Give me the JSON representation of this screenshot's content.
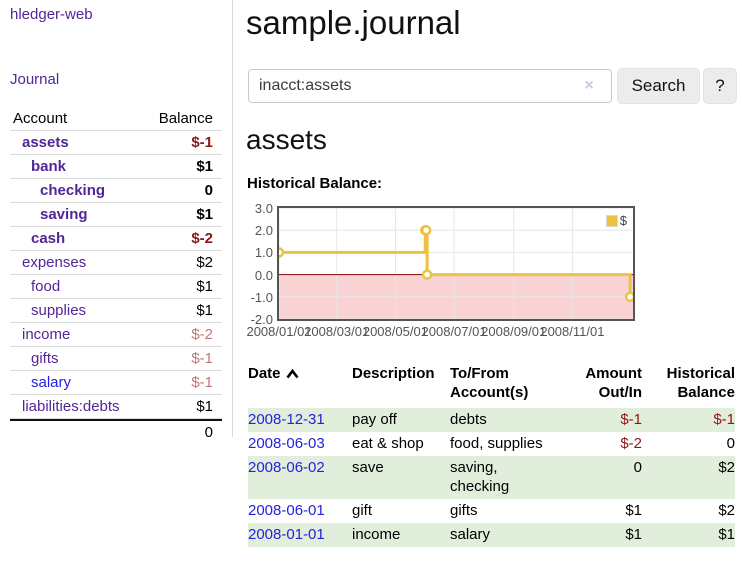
{
  "colors": {
    "link-purple": "#512697",
    "link-blue": "#2222dd",
    "neg-dark": "#8f1616",
    "neg-light": "#c17878",
    "row-green": "#e2eedc",
    "chart-line": "#edc240",
    "chart-negative-fill": "#f9d3d3",
    "chart-zero-line": "#8b0000",
    "chart-grid": "#e6e6e6",
    "chart-border": "#545454",
    "chart-tick-text": "#545454"
  },
  "app": {
    "brand": "hledger-web",
    "nav_journal": "Journal"
  },
  "sidebar": {
    "columns": {
      "account": "Account",
      "balance": "Balance"
    },
    "accounts": [
      {
        "name": "assets",
        "indent": 1,
        "balance": "$-1",
        "bold": true,
        "neg": "dark"
      },
      {
        "name": "bank",
        "indent": 2,
        "balance": "$1",
        "bold": true
      },
      {
        "name": "checking",
        "indent": 3,
        "balance": "0",
        "bold": true
      },
      {
        "name": "saving",
        "indent": 3,
        "balance": "$1",
        "bold": true
      },
      {
        "name": "cash",
        "indent": 2,
        "balance": "$-2",
        "bold": true,
        "neg": "dark"
      },
      {
        "name": "expenses",
        "indent": 1,
        "balance": "$2"
      },
      {
        "name": "food",
        "indent": 2,
        "balance": "$1"
      },
      {
        "name": "supplies",
        "indent": 2,
        "balance": "$1"
      },
      {
        "name": "income",
        "indent": 1,
        "balance": "$-2",
        "neg": "light"
      },
      {
        "name": "gifts",
        "indent": 2,
        "balance": "$-1",
        "neg": "light"
      },
      {
        "name": "salary",
        "indent": 2,
        "balance": "$-1",
        "neg": "light",
        "link": "blue"
      },
      {
        "name": "liabilities:debts",
        "indent": 1,
        "balance": "$1"
      }
    ],
    "total": "0"
  },
  "header": {
    "title": "sample.journal"
  },
  "search": {
    "value": "inacct:assets",
    "clear_icon": "×",
    "search_button": "Search",
    "help_button": "?"
  },
  "account_view": {
    "heading": "assets",
    "chart_title": "Historical Balance:"
  },
  "chart_data": {
    "type": "line",
    "title": "Historical Balance",
    "step": true,
    "xlim_days": [
      0,
      368
    ],
    "ylim": [
      -2,
      3
    ],
    "yticks": [
      "3.0",
      "2.0",
      "1.0",
      "0.0",
      "-1.0",
      "-2.0"
    ],
    "xticks": [
      {
        "days": 0,
        "label": "2008/01/01"
      },
      {
        "days": 60,
        "label": "2008/03/01"
      },
      {
        "days": 121,
        "label": "2008/05/01"
      },
      {
        "days": 182,
        "label": "2008/07/01"
      },
      {
        "days": 244,
        "label": "2008/09/01"
      },
      {
        "days": 305,
        "label": "2008/11/01"
      }
    ],
    "series": [
      {
        "name": "$",
        "points": [
          {
            "date": "2008-01-01",
            "days": 0,
            "balance": 1
          },
          {
            "date": "2008-06-01",
            "days": 152,
            "balance": 2
          },
          {
            "date": "2008-06-02",
            "days": 153,
            "balance": 2
          },
          {
            "date": "2008-06-03",
            "days": 154,
            "balance": 0
          },
          {
            "date": "2008-12-31",
            "days": 365,
            "balance": -1
          }
        ]
      }
    ],
    "legend": {
      "label": "$",
      "position": "top-right"
    },
    "grid": true
  },
  "register": {
    "columns": {
      "date": "Date",
      "description": "Description",
      "accounts": "To/From Account(s)",
      "amount": "Amount Out/In",
      "balance": "Historical Balance"
    },
    "sort": {
      "column": "date",
      "direction": "ascending"
    },
    "rows": [
      {
        "date": "2008-12-31",
        "description": "pay off",
        "accounts": "debts",
        "amount": "$-1",
        "amount_neg": true,
        "balance": "$-1",
        "balance_neg": true
      },
      {
        "date": "2008-06-03",
        "description": "eat & shop",
        "accounts": "food, supplies",
        "amount": "$-2",
        "amount_neg": true,
        "balance": "0"
      },
      {
        "date": "2008-06-02",
        "description": "save",
        "accounts": "saving, checking",
        "amount": "0",
        "balance": "$2"
      },
      {
        "date": "2008-06-01",
        "description": "gift",
        "accounts": "gifts",
        "amount": "$1",
        "balance": "$2"
      },
      {
        "date": "2008-01-01",
        "description": "income",
        "accounts": "salary",
        "amount": "$1",
        "balance": "$1"
      }
    ]
  }
}
